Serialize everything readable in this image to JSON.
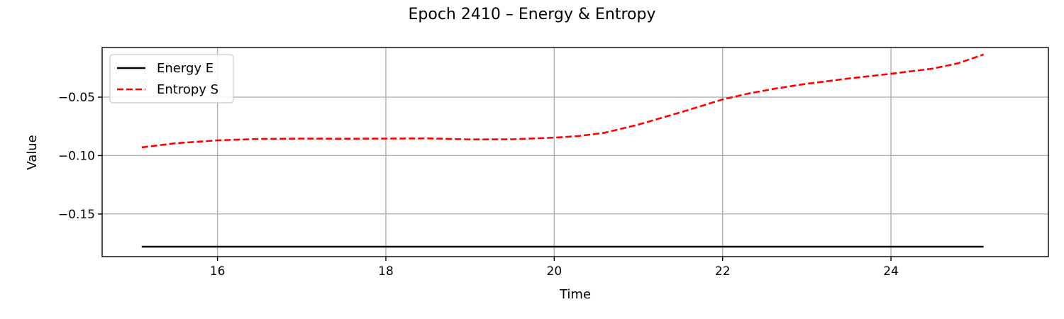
{
  "chart_data": {
    "type": "line",
    "title": "Epoch 2410 – Energy & Entropy",
    "xlabel": "Time",
    "ylabel": "Value",
    "xlim": [
      14.63,
      25.87
    ],
    "ylim": [
      -0.1865,
      -0.0075
    ],
    "xticks": [
      16,
      18,
      20,
      22,
      24
    ],
    "xtick_labels": [
      "16",
      "18",
      "20",
      "22",
      "24"
    ],
    "yticks": [
      -0.05,
      -0.1,
      -0.15
    ],
    "ytick_labels": [
      "−0.05",
      "−0.10",
      "−0.15"
    ],
    "grid": true,
    "legend_position": "upper-left",
    "series": [
      {
        "name": "Energy E",
        "color": "#000000",
        "style": "solid",
        "x": [
          15.1,
          25.1
        ],
        "y": [
          -0.178,
          -0.178
        ]
      },
      {
        "name": "Entropy S",
        "color": "#ff0000",
        "style": "dashed",
        "x": [
          15.1,
          15.5,
          16.0,
          16.5,
          17.0,
          17.5,
          18.0,
          18.5,
          19.0,
          19.5,
          20.0,
          20.3,
          20.6,
          21.0,
          21.5,
          22.0,
          22.3,
          22.6,
          23.0,
          23.5,
          24.0,
          24.5,
          24.8,
          25.1
        ],
        "y": [
          -0.093,
          -0.0895,
          -0.087,
          -0.0858,
          -0.0855,
          -0.0856,
          -0.0855,
          -0.0853,
          -0.0862,
          -0.0861,
          -0.0847,
          -0.0832,
          -0.0805,
          -0.0735,
          -0.063,
          -0.052,
          -0.047,
          -0.043,
          -0.0385,
          -0.034,
          -0.03,
          -0.0255,
          -0.021,
          -0.0135
        ]
      }
    ]
  }
}
